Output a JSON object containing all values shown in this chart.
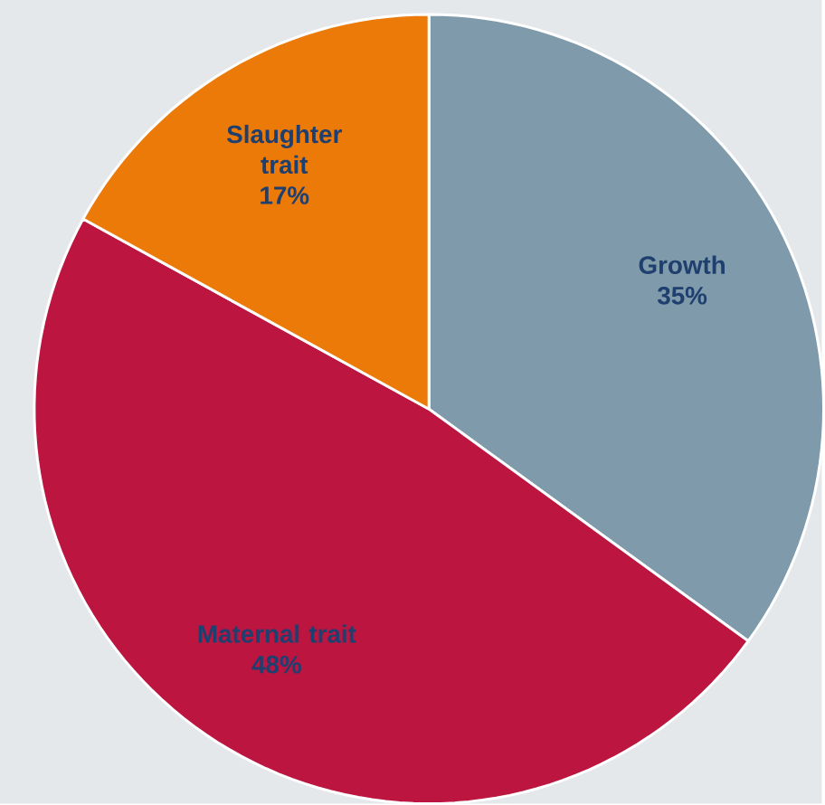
{
  "chart_data": {
    "type": "pie",
    "categories": [
      "Growth",
      "Maternal trait",
      "Slaughter trait"
    ],
    "values": [
      35,
      48,
      17
    ],
    "value_labels": [
      "35%",
      "48%",
      "17%"
    ],
    "colors": [
      "#7f9aaa",
      "#bc1540",
      "#ec7a08"
    ]
  }
}
